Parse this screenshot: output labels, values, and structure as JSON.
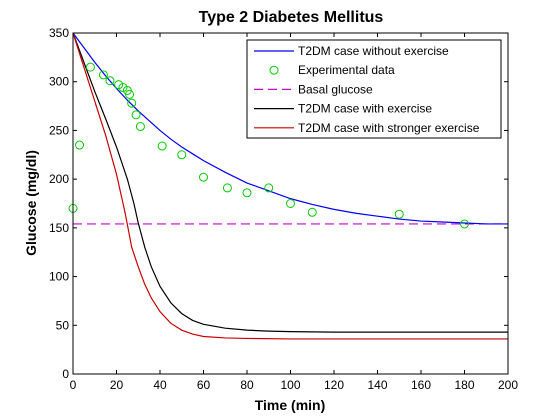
{
  "chart_data": {
    "type": "line",
    "title": "Type 2 Diabetes Mellitus",
    "xlabel": "Time (min)",
    "ylabel": "Glucose (mg/dl)",
    "xlim": [
      0,
      200
    ],
    "ylim": [
      0,
      350
    ],
    "xticks": [
      0,
      20,
      40,
      60,
      80,
      100,
      120,
      140,
      160,
      180,
      200
    ],
    "yticks": [
      0,
      50,
      100,
      150,
      200,
      250,
      300,
      350
    ],
    "grid": false,
    "legend_position": "top-right",
    "series": [
      {
        "name": "T2DM case without exercise",
        "style": "line",
        "color": "#0000ff",
        "points": [
          [
            0,
            350
          ],
          [
            5,
            335
          ],
          [
            10,
            320
          ],
          [
            15,
            306
          ],
          [
            20,
            293
          ],
          [
            25,
            281
          ],
          [
            30,
            270
          ],
          [
            35,
            260
          ],
          [
            40,
            250
          ],
          [
            45,
            241
          ],
          [
            50,
            233
          ],
          [
            55,
            226
          ],
          [
            60,
            219
          ],
          [
            70,
            207
          ],
          [
            80,
            196
          ],
          [
            90,
            188
          ],
          [
            100,
            180
          ],
          [
            110,
            174
          ],
          [
            120,
            169
          ],
          [
            130,
            165
          ],
          [
            140,
            162
          ],
          [
            150,
            159
          ],
          [
            160,
            157
          ],
          [
            170,
            156
          ],
          [
            180,
            155
          ],
          [
            190,
            154
          ],
          [
            200,
            154
          ]
        ]
      },
      {
        "name": "Experimental data",
        "style": "markers",
        "color": "#00cc00",
        "points": [
          [
            0,
            170
          ],
          [
            3,
            235
          ],
          [
            8,
            315
          ],
          [
            14,
            307
          ],
          [
            17,
            301
          ],
          [
            21,
            297
          ],
          [
            23,
            294
          ],
          [
            25,
            291
          ],
          [
            26,
            287
          ],
          [
            27,
            278
          ],
          [
            29,
            266
          ],
          [
            31,
            254
          ],
          [
            41,
            234
          ],
          [
            50,
            225
          ],
          [
            60,
            202
          ],
          [
            71,
            191
          ],
          [
            80,
            186
          ],
          [
            90,
            191
          ],
          [
            100,
            175
          ],
          [
            110,
            166
          ],
          [
            150,
            164
          ],
          [
            180,
            154
          ]
        ]
      },
      {
        "name": "Basal glucose",
        "style": "dashed",
        "color": "#cc00cc",
        "points": [
          [
            0,
            154
          ],
          [
            200,
            154
          ]
        ]
      },
      {
        "name": "T2DM case with exercise",
        "style": "line",
        "color": "#000000",
        "points": [
          [
            0,
            350
          ],
          [
            5,
            320
          ],
          [
            10,
            290
          ],
          [
            15,
            262
          ],
          [
            20,
            233
          ],
          [
            25,
            200
          ],
          [
            28,
            175
          ],
          [
            30,
            155
          ],
          [
            33,
            130
          ],
          [
            36,
            110
          ],
          [
            40,
            90
          ],
          [
            45,
            73
          ],
          [
            50,
            62
          ],
          [
            55,
            55
          ],
          [
            60,
            51
          ],
          [
            70,
            47
          ],
          [
            80,
            45
          ],
          [
            90,
            44
          ],
          [
            100,
            43.5
          ],
          [
            120,
            43
          ],
          [
            140,
            43
          ],
          [
            160,
            43
          ],
          [
            180,
            43
          ],
          [
            200,
            43
          ]
        ]
      },
      {
        "name": "T2DM case with stronger exercise",
        "style": "line",
        "color": "#cc0000",
        "points": [
          [
            0,
            350
          ],
          [
            5,
            315
          ],
          [
            10,
            280
          ],
          [
            15,
            245
          ],
          [
            20,
            205
          ],
          [
            24,
            165
          ],
          [
            27,
            130
          ],
          [
            30,
            110
          ],
          [
            33,
            92
          ],
          [
            36,
            78
          ],
          [
            40,
            64
          ],
          [
            45,
            52
          ],
          [
            50,
            45
          ],
          [
            55,
            41
          ],
          [
            60,
            38.5
          ],
          [
            70,
            37
          ],
          [
            80,
            36.5
          ],
          [
            100,
            36
          ],
          [
            120,
            36
          ],
          [
            140,
            36
          ],
          [
            160,
            36
          ],
          [
            180,
            36
          ],
          [
            200,
            36
          ]
        ]
      }
    ]
  }
}
